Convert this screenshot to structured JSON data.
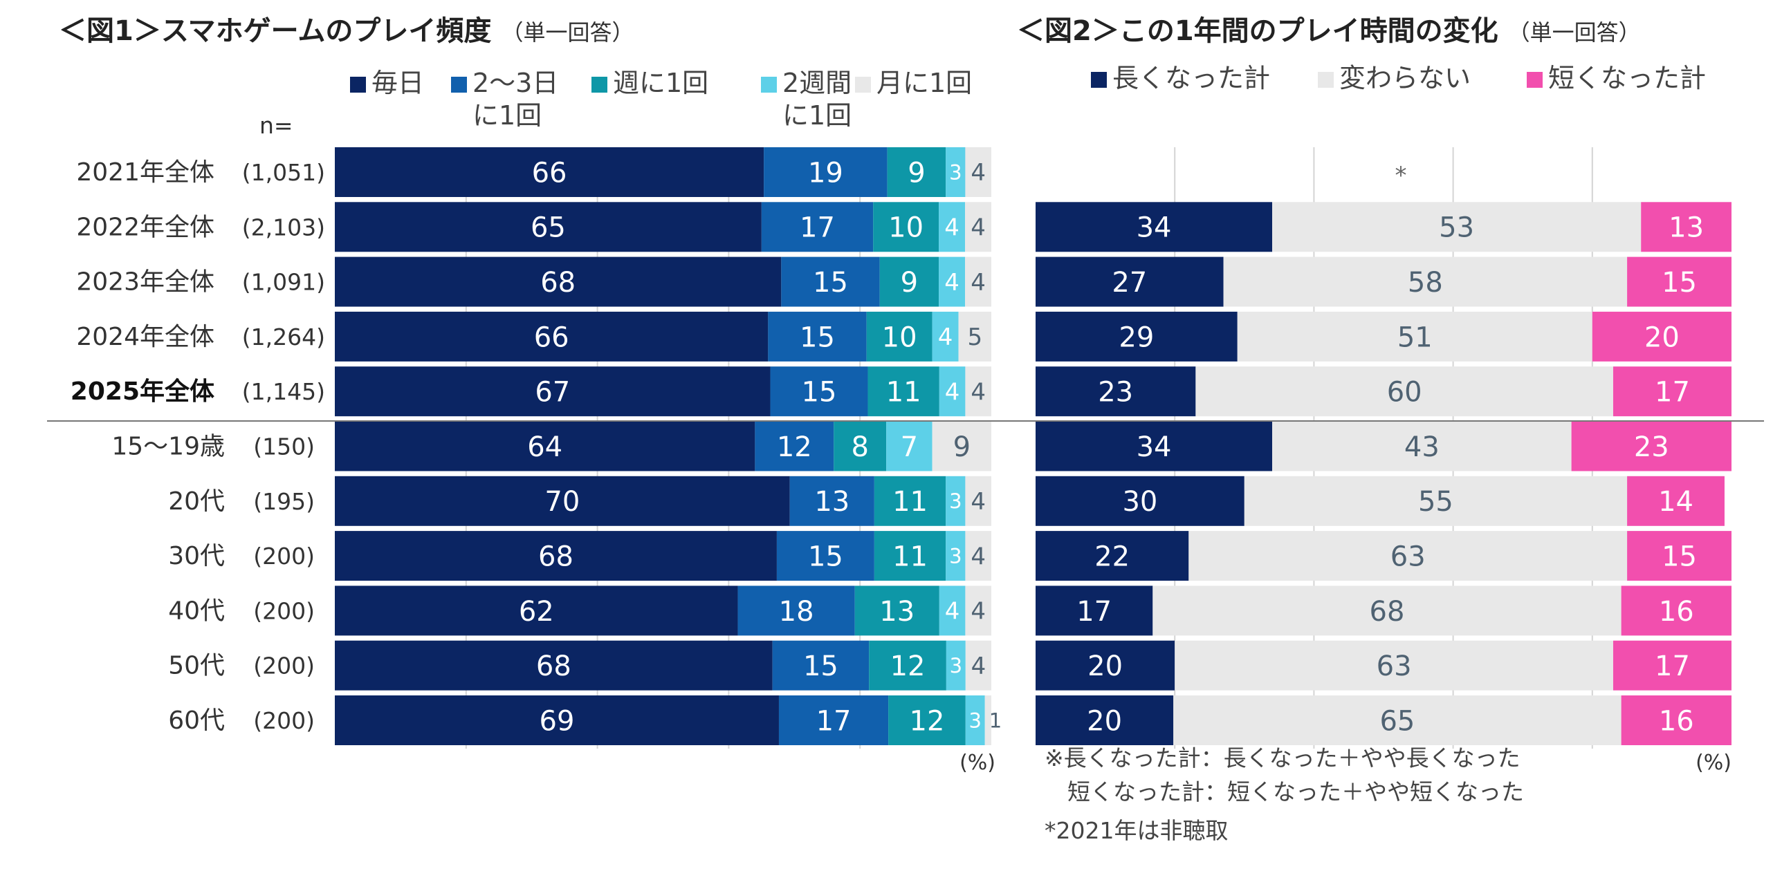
{
  "chart_data": [
    {
      "type": "bar",
      "orientation": "horizontal",
      "stacked": true,
      "title": "＜図1＞スマホゲームのプレイ頻度",
      "title_note": "（単一回答）",
      "n_header": "n=",
      "unit_label": "(%)",
      "categories": [
        "2021年全体",
        "2022年全体",
        "2023年全体",
        "2024年全体",
        "2025年全体",
        "15～19歳",
        "20代",
        "30代",
        "40代",
        "50代",
        "60代"
      ],
      "bold_categories": [
        "2025年全体"
      ],
      "n": [
        "(1,051)",
        "(2,103)",
        "(1,091)",
        "(1,264)",
        "(1,145)",
        "(150)",
        "(195)",
        "(200)",
        "(200)",
        "(200)",
        "(200)"
      ],
      "xlim": [
        0,
        100
      ],
      "grid": true,
      "legend_position": "top",
      "series": [
        {
          "name": "毎日",
          "legend": [
            "毎日"
          ],
          "color": "#0b2563",
          "label_color": "#ffffff",
          "values": [
            66,
            65,
            68,
            66,
            67,
            64,
            70,
            68,
            62,
            68,
            69
          ]
        },
        {
          "name": "2～3日に1回",
          "legend": [
            "2～3日",
            "に1回"
          ],
          "color": "#1160ad",
          "label_color": "#ffffff",
          "values": [
            19,
            17,
            15,
            15,
            15,
            12,
            13,
            15,
            18,
            15,
            17
          ]
        },
        {
          "name": "週に1回",
          "legend": [
            "週に1回"
          ],
          "color": "#0e97a7",
          "label_color": "#ffffff",
          "values": [
            9,
            10,
            9,
            10,
            11,
            8,
            11,
            11,
            13,
            12,
            12
          ]
        },
        {
          "name": "2週間に1回",
          "legend": [
            "2週間",
            "に1回"
          ],
          "color": "#5dd0e8",
          "label_color": "#ffffff",
          "values": [
            3,
            4,
            4,
            4,
            4,
            7,
            3,
            3,
            4,
            3,
            3
          ]
        },
        {
          "name": "月に1回",
          "legend": [
            "月に1回"
          ],
          "color": "#e8e8e8",
          "label_color": "#4f6272",
          "values": [
            4,
            4,
            4,
            5,
            4,
            9,
            4,
            4,
            4,
            4,
            1
          ]
        }
      ]
    },
    {
      "type": "bar",
      "orientation": "horizontal",
      "stacked": true,
      "title": "＜図2＞この1年間のプレイ時間の変化",
      "title_note": "（単一回答）",
      "unit_label": "(%)",
      "xlim": [
        0,
        100
      ],
      "grid": true,
      "legend_position": "top",
      "missing_row_marker": "*",
      "series": [
        {
          "name": "長くなった計",
          "color": "#0b2563",
          "label_color": "#ffffff",
          "values": [
            null,
            34,
            27,
            29,
            23,
            34,
            30,
            22,
            17,
            20,
            20
          ]
        },
        {
          "name": "変わらない",
          "color": "#e8e8e8",
          "label_color": "#4f6272",
          "values": [
            null,
            53,
            58,
            51,
            60,
            43,
            55,
            63,
            68,
            63,
            65
          ]
        },
        {
          "name": "短くなった計",
          "color": "#f24fae",
          "label_color": "#ffffff",
          "values": [
            null,
            13,
            15,
            20,
            17,
            23,
            14,
            15,
            16,
            17,
            16
          ]
        }
      ],
      "notes": [
        "※長くなった計：長くなった＋やや長くなった",
        "　短くなった計：短くなった＋やや短くなった",
        "*2021年は非聴取"
      ]
    }
  ]
}
